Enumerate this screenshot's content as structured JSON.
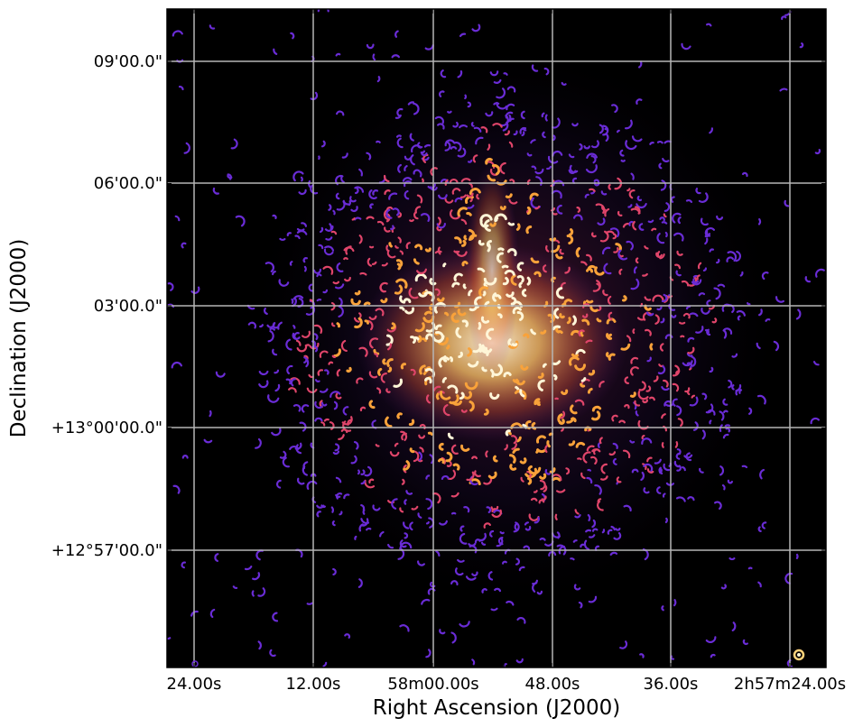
{
  "image": {
    "colormap": "inferno",
    "background": "#000000",
    "colors": {
      "low": "#6a2cd6",
      "mid": "#e0456a",
      "high": "#f9a23a",
      "peak": "#fff6d8",
      "grid": "#b5b5b5"
    }
  },
  "axes": {
    "xlabel": "Right Ascension (J2000)",
    "ylabel": "Declination (J2000)",
    "xticks": [
      "24.00s",
      "12.00s",
      "58m00.00s",
      "48.00s",
      "36.00s",
      "2h57m24.00s"
    ],
    "yticks": [
      "09'00.0\"",
      "06'00.0\"",
      "03'00.0\"",
      "+13°00'00.0\"",
      "+12°57'00.0\""
    ],
    "grid": true
  }
}
